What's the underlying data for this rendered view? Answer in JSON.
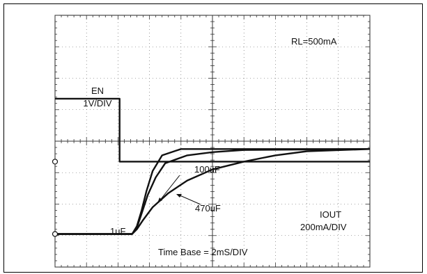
{
  "chart_data": {
    "type": "line",
    "title": "",
    "xlabel": "",
    "ylabel": "",
    "divisions": {
      "x": 10,
      "y": 8
    },
    "xlim": [
      0,
      10
    ],
    "ylim": [
      0,
      8
    ],
    "grid": true,
    "annotations": {
      "load": "RL=500mA",
      "en_name": "EN",
      "en_scale": "1V/DIV",
      "iout_name": "IOUT",
      "iout_scale": "200mA/DIV",
      "time_base": "Time Base = 2mS/DIV",
      "cap_100": "100uF",
      "cap_470": "470uF",
      "cap_1": "1uF"
    },
    "series": [
      {
        "name": "EN",
        "x": [
          0,
          2.05,
          2.05,
          10
        ],
        "y": [
          5.35,
          5.35,
          3.35,
          3.35
        ]
      },
      {
        "name": "1uF",
        "x": [
          0,
          2.45,
          2.6,
          2.75,
          2.9,
          3.1,
          3.4,
          4,
          10
        ],
        "y": [
          1.05,
          1.05,
          1.3,
          1.8,
          2.4,
          3.05,
          3.55,
          3.75,
          3.75
        ]
      },
      {
        "name": "100uF",
        "x": [
          0,
          2.45,
          2.6,
          2.75,
          2.95,
          3.2,
          3.5,
          4.2,
          5,
          6,
          10
        ],
        "y": [
          1.05,
          1.05,
          1.25,
          1.7,
          2.3,
          2.85,
          3.3,
          3.55,
          3.65,
          3.72,
          3.75
        ]
      },
      {
        "name": "470uF",
        "x": [
          0,
          2.45,
          2.6,
          2.8,
          3.1,
          3.6,
          4.2,
          5,
          6,
          7,
          8,
          10
        ],
        "y": [
          1.05,
          1.05,
          1.2,
          1.5,
          1.9,
          2.35,
          2.75,
          3.1,
          3.35,
          3.55,
          3.68,
          3.75
        ]
      }
    ],
    "markers": [
      {
        "name": "EN ground",
        "y": 3.35
      },
      {
        "name": "IOUT ground",
        "y": 1.05
      }
    ]
  }
}
